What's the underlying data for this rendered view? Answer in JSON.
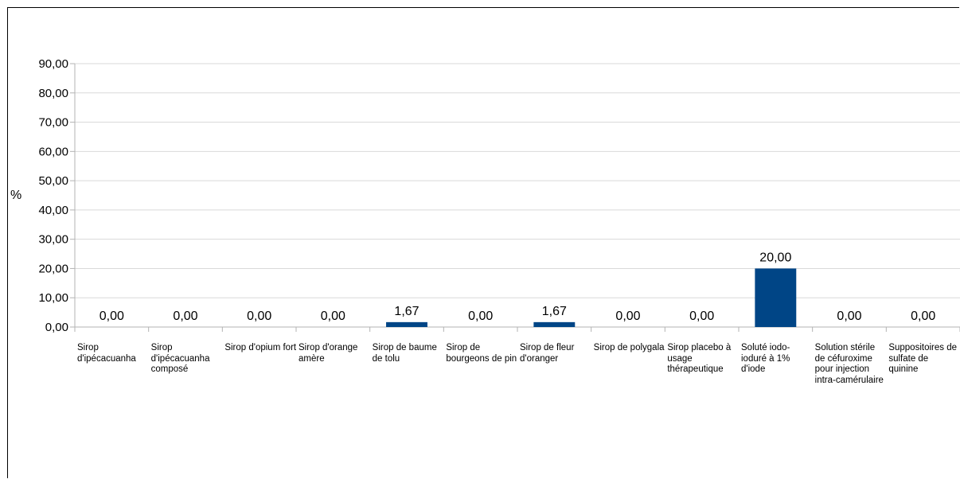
{
  "chart_data": {
    "type": "bar",
    "ylabel": "%",
    "xlabel": "",
    "ylim": [
      0,
      90
    ],
    "yticks": [
      "0,00",
      "10,00",
      "20,00",
      "30,00",
      "40,00",
      "50,00",
      "60,00",
      "70,00",
      "80,00",
      "90,00"
    ],
    "grid": true,
    "bar_color": "#004586",
    "categories": [
      "Sirop d'ipécacuanha",
      "Sirop d'ipécacuanha composé",
      "Sirop d'opium fort",
      "Sirop d'orange amère",
      "Sirop de baume de tolu",
      "Sirop de bourgeons de pin",
      "Sirop de fleur d'oranger",
      "Sirop de polygala",
      "Sirop placebo à usage thérapeutique",
      "Soluté iodo-ioduré à 1% d'iode",
      "Solution stérile de céfuroxime pour injection intra-camérulaire",
      "Suppositoires de sulfate de quinine"
    ],
    "values": [
      0,
      0,
      0,
      0,
      1.67,
      0,
      1.67,
      0,
      0,
      20,
      0,
      0
    ],
    "value_labels": [
      "0,00",
      "0,00",
      "0,00",
      "0,00",
      "1,67",
      "0,00",
      "1,67",
      "0,00",
      "0,00",
      "20,00",
      "0,00",
      "0,00"
    ]
  }
}
